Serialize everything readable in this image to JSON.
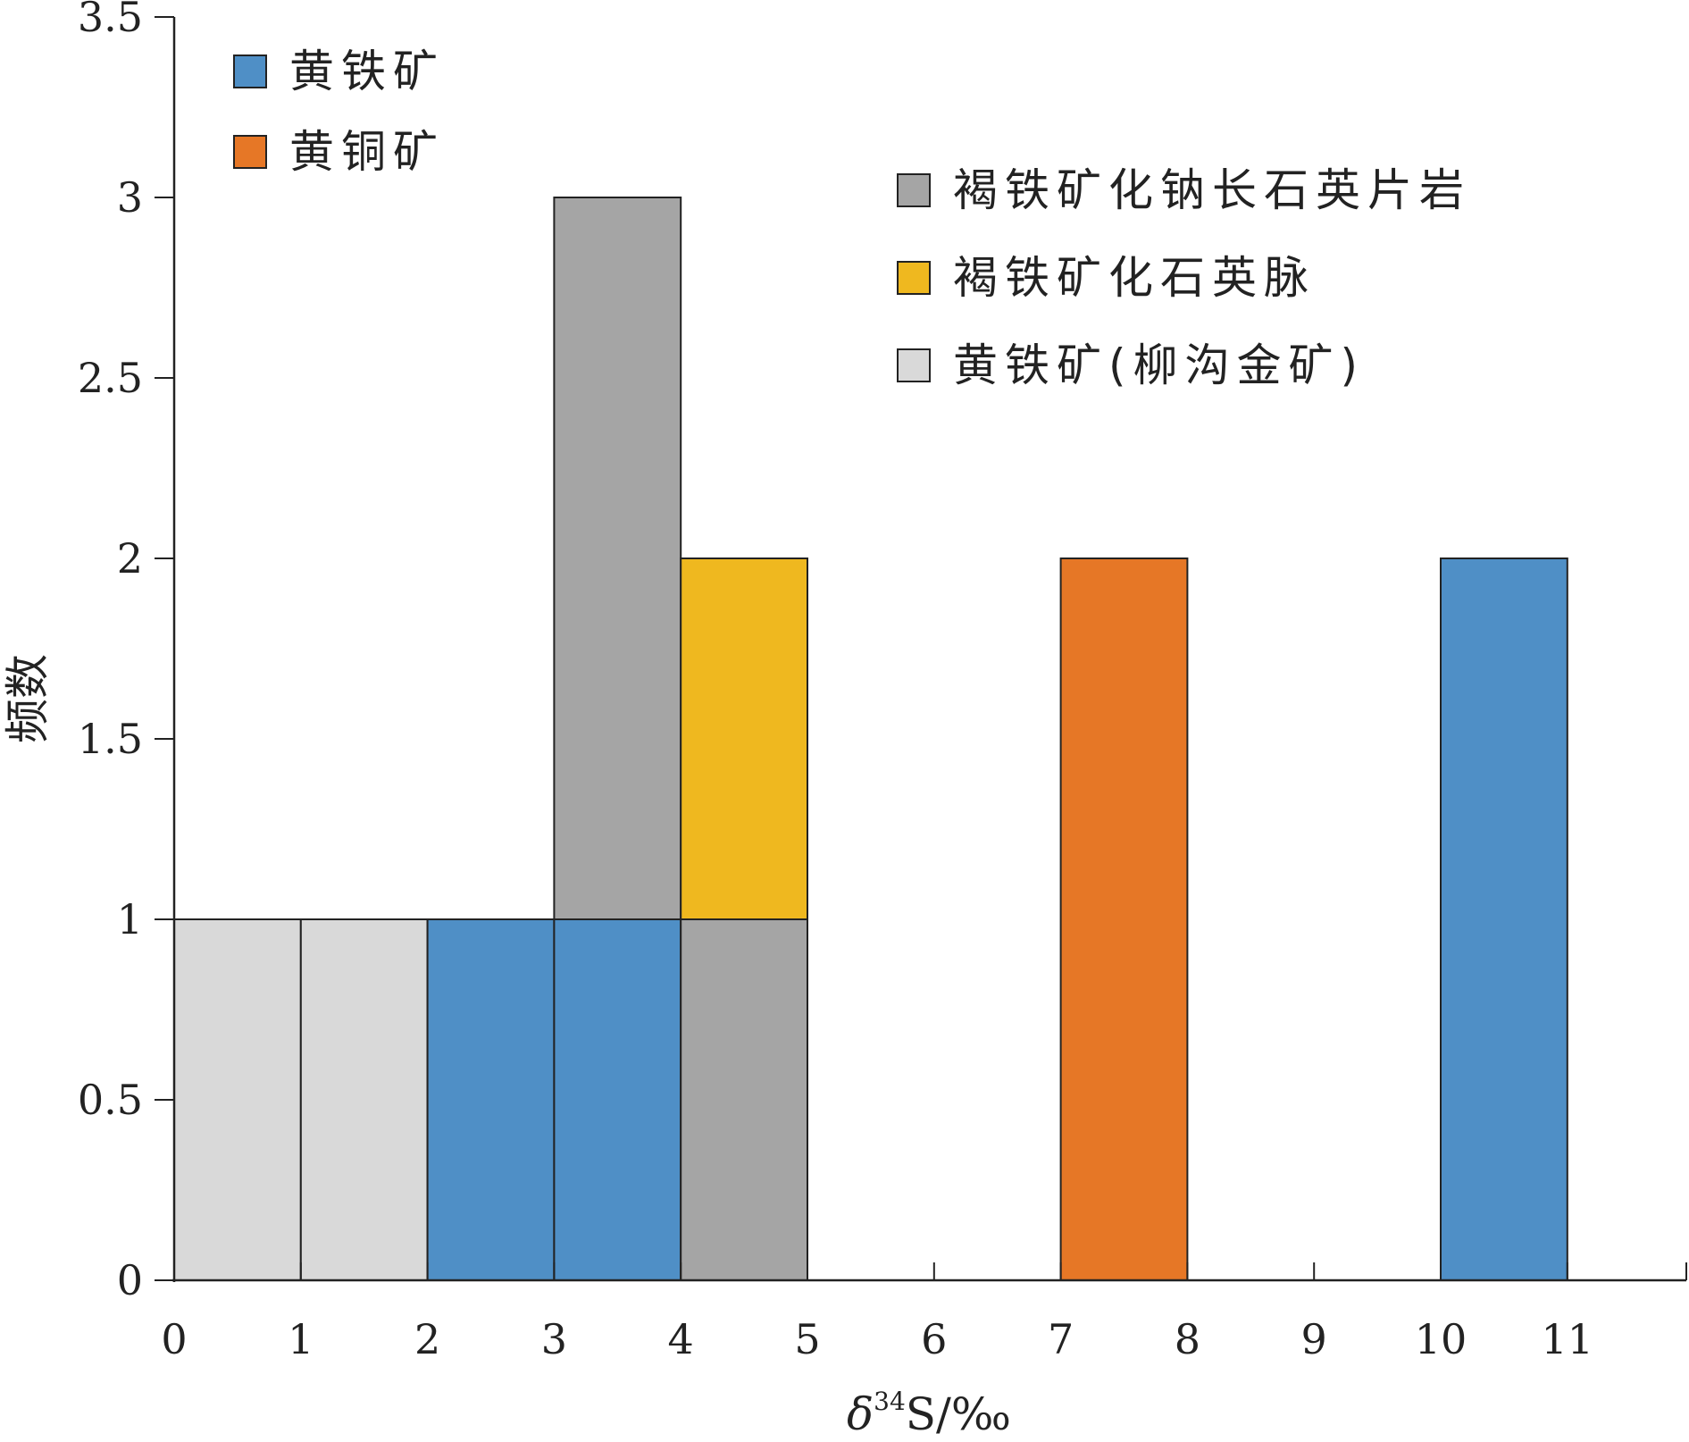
{
  "chart_data": {
    "type": "bar",
    "subtype": "stacked-histogram",
    "xlabel_symbol": "δ",
    "xlabel_superscript": "34",
    "xlabel_rest": "S/‰",
    "ylabel": "频数",
    "xlim": [
      0,
      12
    ],
    "ylim": [
      0,
      3.5
    ],
    "x_ticks": [
      0,
      1,
      2,
      3,
      4,
      5,
      6,
      7,
      8,
      9,
      10,
      11
    ],
    "y_ticks": [
      0,
      0.5,
      1,
      1.5,
      2,
      2.5,
      3,
      3.5
    ],
    "y_tick_labels": [
      "0",
      "0.5",
      "1",
      "1.5",
      "2",
      "2.5",
      "3",
      "3.5"
    ],
    "bin_width": 1,
    "series": [
      {
        "name": "黄铁矿",
        "color": "#4f8fc6",
        "bars": [
          {
            "x0": 2,
            "value": 1
          },
          {
            "x0": 3,
            "value": 1
          },
          {
            "x0": 10,
            "value": 2
          }
        ]
      },
      {
        "name": "黄铜矿",
        "color": "#e67726",
        "bars": [
          {
            "x0": 7,
            "value": 2
          }
        ]
      },
      {
        "name": "褐铁矿化钠长石英片岩",
        "color": "#a5a5a5",
        "bars": [
          {
            "x0": 3,
            "value": 2
          },
          {
            "x0": 4,
            "value": 1
          }
        ]
      },
      {
        "name": "褐铁矿化石英脉",
        "color": "#efb81f",
        "bars": [
          {
            "x0": 4,
            "value": 1
          }
        ]
      },
      {
        "name": "黄铁矿(柳沟金矿)",
        "color": "#d9d9d9",
        "bars": [
          {
            "x0": 0,
            "value": 1
          },
          {
            "x0": 1,
            "value": 1
          }
        ]
      }
    ],
    "stack_order": [
      "黄铁矿(柳沟金矿)",
      "黄铁矿",
      "黄铜矿",
      "褐铁矿化钠长石英片岩",
      "褐铁矿化石英脉"
    ],
    "grid": false,
    "legend_groups": [
      {
        "placement": "top-left",
        "entries": [
          "黄铁矿",
          "黄铜矿"
        ]
      },
      {
        "placement": "top-right",
        "entries": [
          "褐铁矿化钠长石英片岩",
          "褐铁矿化石英脉",
          "黄铁矿(柳沟金矿)"
        ]
      }
    ]
  }
}
